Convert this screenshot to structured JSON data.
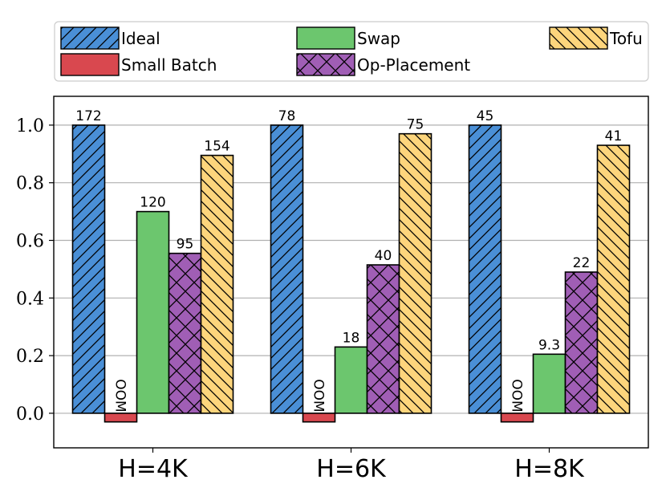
{
  "chart_data": {
    "type": "bar",
    "categories": [
      "H=4K",
      "H=6K",
      "H=8K"
    ],
    "ylim": [
      -0.12,
      1.1
    ],
    "yticks": [
      "0.0",
      "0.2",
      "0.4",
      "0.6",
      "0.8",
      "1.0"
    ],
    "grid": "horizontal",
    "legend_position": "top",
    "series": [
      {
        "name": "Ideal",
        "color": "#4a8fd6",
        "hatch": "diagonal",
        "values": [
          1.0,
          1.0,
          1.0
        ],
        "labels": [
          "172",
          "78",
          "45"
        ]
      },
      {
        "name": "Small Batch",
        "color": "#d9484f",
        "hatch": "none",
        "values": [
          -0.03,
          -0.03,
          -0.03
        ],
        "labels": [
          "OOM",
          "OOM",
          "OOM"
        ]
      },
      {
        "name": "Swap",
        "color": "#6cc66e",
        "hatch": "none",
        "values": [
          0.7,
          0.23,
          0.205
        ],
        "labels": [
          "120",
          "18",
          "9.3"
        ]
      },
      {
        "name": "Op-Placement",
        "color": "#a05eb5",
        "hatch": "cross",
        "values": [
          0.555,
          0.515,
          0.49
        ],
        "labels": [
          "95",
          "40",
          "22"
        ]
      },
      {
        "name": "Tofu",
        "color": "#fdd57c",
        "hatch": "backdiagonal",
        "values": [
          0.895,
          0.97,
          0.93
        ],
        "labels": [
          "154",
          "75",
          "41"
        ]
      }
    ]
  }
}
